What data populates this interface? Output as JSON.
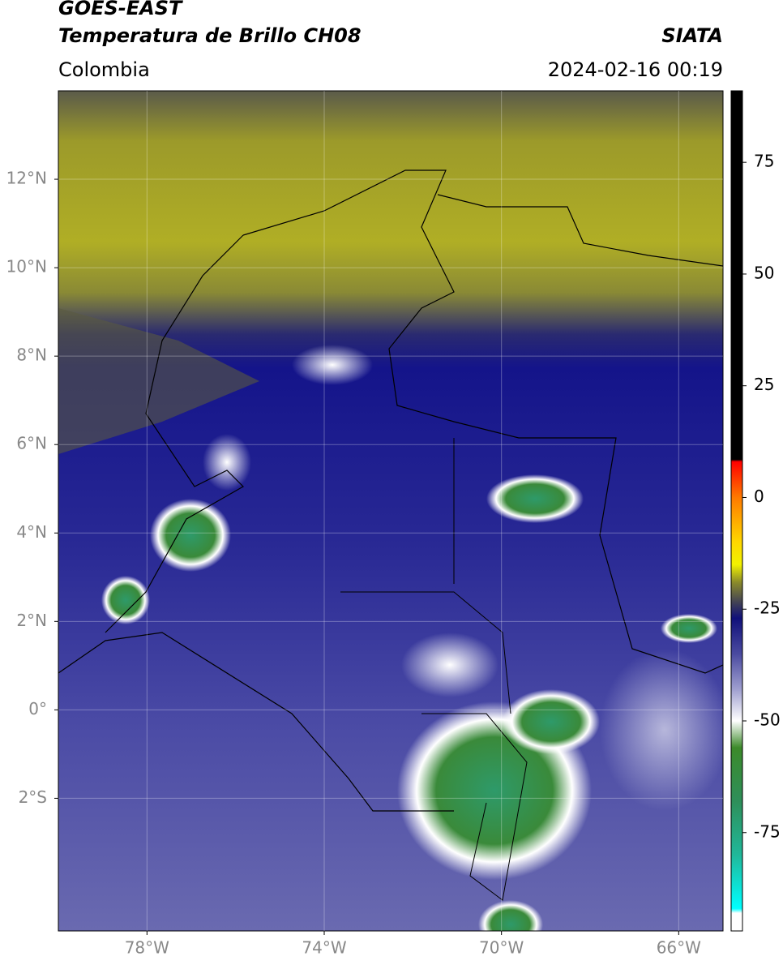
{
  "header": {
    "satellite": "GOES-EAST",
    "product": "Temperatura de Brillo CH08",
    "source": "SIATA",
    "region": "Colombia",
    "datetime": "2024-02-16 00:19"
  },
  "chart_data": {
    "type": "map",
    "xlim": [
      -80,
      -65
    ],
    "ylim": [
      -5,
      14
    ],
    "xticks": [
      {
        "value": -78,
        "label": "78°W"
      },
      {
        "value": -74,
        "label": "74°W"
      },
      {
        "value": -70,
        "label": "70°W"
      },
      {
        "value": -66,
        "label": "66°W"
      }
    ],
    "yticks": [
      {
        "value": 12,
        "label": "12°N"
      },
      {
        "value": 10,
        "label": "10°N"
      },
      {
        "value": 8,
        "label": "8°N"
      },
      {
        "value": 6,
        "label": "6°N"
      },
      {
        "value": 4,
        "label": "4°N"
      },
      {
        "value": 2,
        "label": "2°N"
      },
      {
        "value": 0,
        "label": "0°"
      },
      {
        "value": -2,
        "label": "2°S"
      }
    ],
    "grid": true,
    "colorbar": {
      "lim": [
        -97,
        91
      ],
      "ticks": [
        75,
        50,
        25,
        0,
        -25,
        -50,
        -75
      ],
      "stops": [
        {
          "value": 91,
          "color": "#000000"
        },
        {
          "value": 8.5,
          "color": "#000000"
        },
        {
          "value": 8,
          "color": "#ff0000"
        },
        {
          "value": 0,
          "color": "#ff7a00"
        },
        {
          "value": -10,
          "color": "#ffd700"
        },
        {
          "value": -15,
          "color": "#f2f200"
        },
        {
          "value": -19,
          "color": "#8a8a2a"
        },
        {
          "value": -24,
          "color": "#3a3a5a"
        },
        {
          "value": -27,
          "color": "#10107a"
        },
        {
          "value": -35,
          "color": "#4a4aa0"
        },
        {
          "value": -43,
          "color": "#a0a0d0"
        },
        {
          "value": -50,
          "color": "#ffffff"
        },
        {
          "value": -56,
          "color": "#3c8a2a"
        },
        {
          "value": -68,
          "color": "#2e8f5a"
        },
        {
          "value": -80,
          "color": "#20b89a"
        },
        {
          "value": -92,
          "color": "#00ffff"
        },
        {
          "value": -93,
          "color": "#ffffff"
        },
        {
          "value": -97,
          "color": "#ffffff"
        }
      ]
    }
  }
}
